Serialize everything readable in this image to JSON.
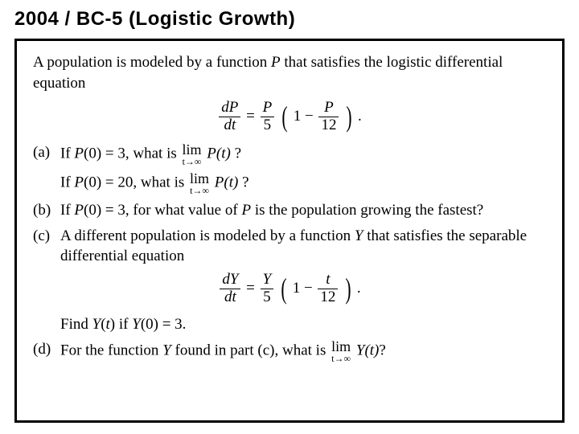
{
  "title": "2004 / BC-5 (Logistic Growth)",
  "intro": "A population is modeled by a function P that satisfies the logistic differential equation",
  "eq1": {
    "lhs_num": "dP",
    "lhs_den": "dt",
    "eq": " = ",
    "r1_num": "P",
    "r1_den": "5",
    "inner_pre": "1 − ",
    "r2_num": "P",
    "r2_den": "12",
    "tail": "."
  },
  "parts": {
    "a": {
      "label": "(a)",
      "line1_pre": "If P(0) = 3, what is ",
      "lim_top": "lim",
      "lim_bot": "t→∞",
      "line1_fn": "P(t)",
      "line1_q": " ?",
      "line2_pre": "If P(0) = 20, what is ",
      "line2_fn": "P(t)",
      "line2_q": " ?"
    },
    "b": {
      "label": "(b)",
      "text": "If P(0) = 3, for what value of P is the population growing the fastest?"
    },
    "c": {
      "label": "(c)",
      "text": "A different population is modeled by a function Y that satisfies the separable differential equation"
    },
    "eq2": {
      "lhs_num": "dY",
      "lhs_den": "dt",
      "eq": " = ",
      "r1_num": "Y",
      "r1_den": "5",
      "inner_pre": "1 − ",
      "r2_num": "t",
      "r2_den": "12",
      "tail": "."
    },
    "c2": "Find Y(t) if Y(0) = 3.",
    "d": {
      "label": "(d)",
      "pre": "For the function Y found in part (c), what is ",
      "lim_top": "lim",
      "lim_bot": "t→∞",
      "fn": "Y(t)",
      "q": "?"
    }
  }
}
